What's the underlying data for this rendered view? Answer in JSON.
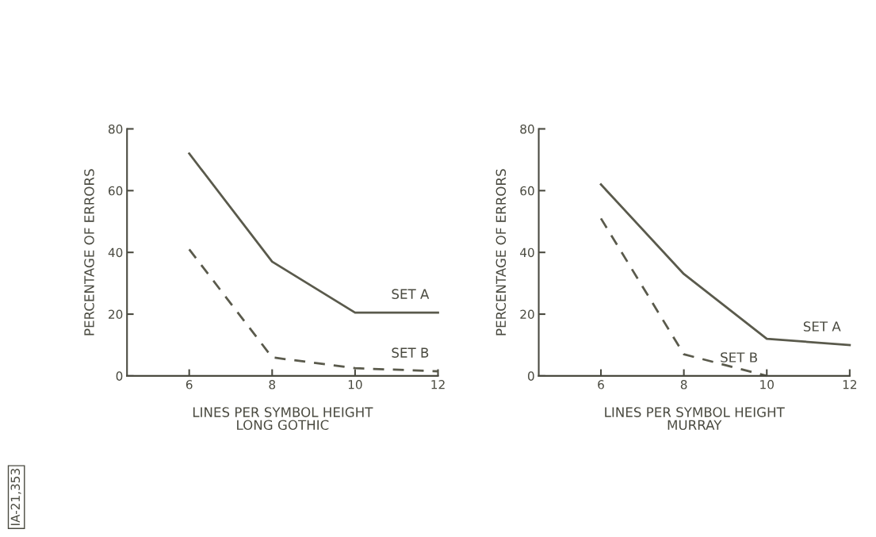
{
  "chart_data": [
    {
      "type": "line",
      "xlabel": "LINES PER SYMBOL HEIGHT\nLONG GOTHIC",
      "ylabel": "PERCENTAGE OF ERRORS",
      "x": [
        6,
        8,
        10,
        12
      ],
      "xlim": [
        4.5,
        12
      ],
      "xticks": [
        6,
        8,
        10,
        12
      ],
      "ylim": [
        0,
        80
      ],
      "yticks": [
        0,
        20,
        40,
        60,
        80
      ],
      "grid": false,
      "legend": false,
      "marker": "none",
      "annotations": [
        "IA-21,353"
      ],
      "series": [
        {
          "name": "SET A",
          "color": "#5a5a4c",
          "line_style": "solid",
          "values": [
            72,
            37,
            20.5,
            20.5
          ]
        },
        {
          "name": "SET B",
          "color": "#5a5a4c",
          "line_style": "dashed",
          "values": [
            41,
            6,
            2.5,
            1.5
          ]
        }
      ]
    },
    {
      "type": "line",
      "xlabel": "LINES PER SYMBOL HEIGHT\nMURRAY",
      "ylabel": "PERCENTAGE OF ERRORS",
      "x": [
        6,
        8,
        10,
        12
      ],
      "xlim": [
        4.5,
        12
      ],
      "xticks": [
        6,
        8,
        10,
        12
      ],
      "ylim": [
        0,
        80
      ],
      "yticks": [
        0,
        20,
        40,
        60,
        80
      ],
      "grid": false,
      "legend": false,
      "marker": "none",
      "series": [
        {
          "name": "SET A",
          "color": "#5a5a4c",
          "line_style": "solid",
          "values": [
            62,
            33,
            12,
            10
          ]
        },
        {
          "name": "SET B",
          "color": "#5a5a4c",
          "line_style": "dashed",
          "x": [
            6,
            8,
            10
          ],
          "values": [
            51,
            7,
            0
          ]
        }
      ]
    }
  ]
}
